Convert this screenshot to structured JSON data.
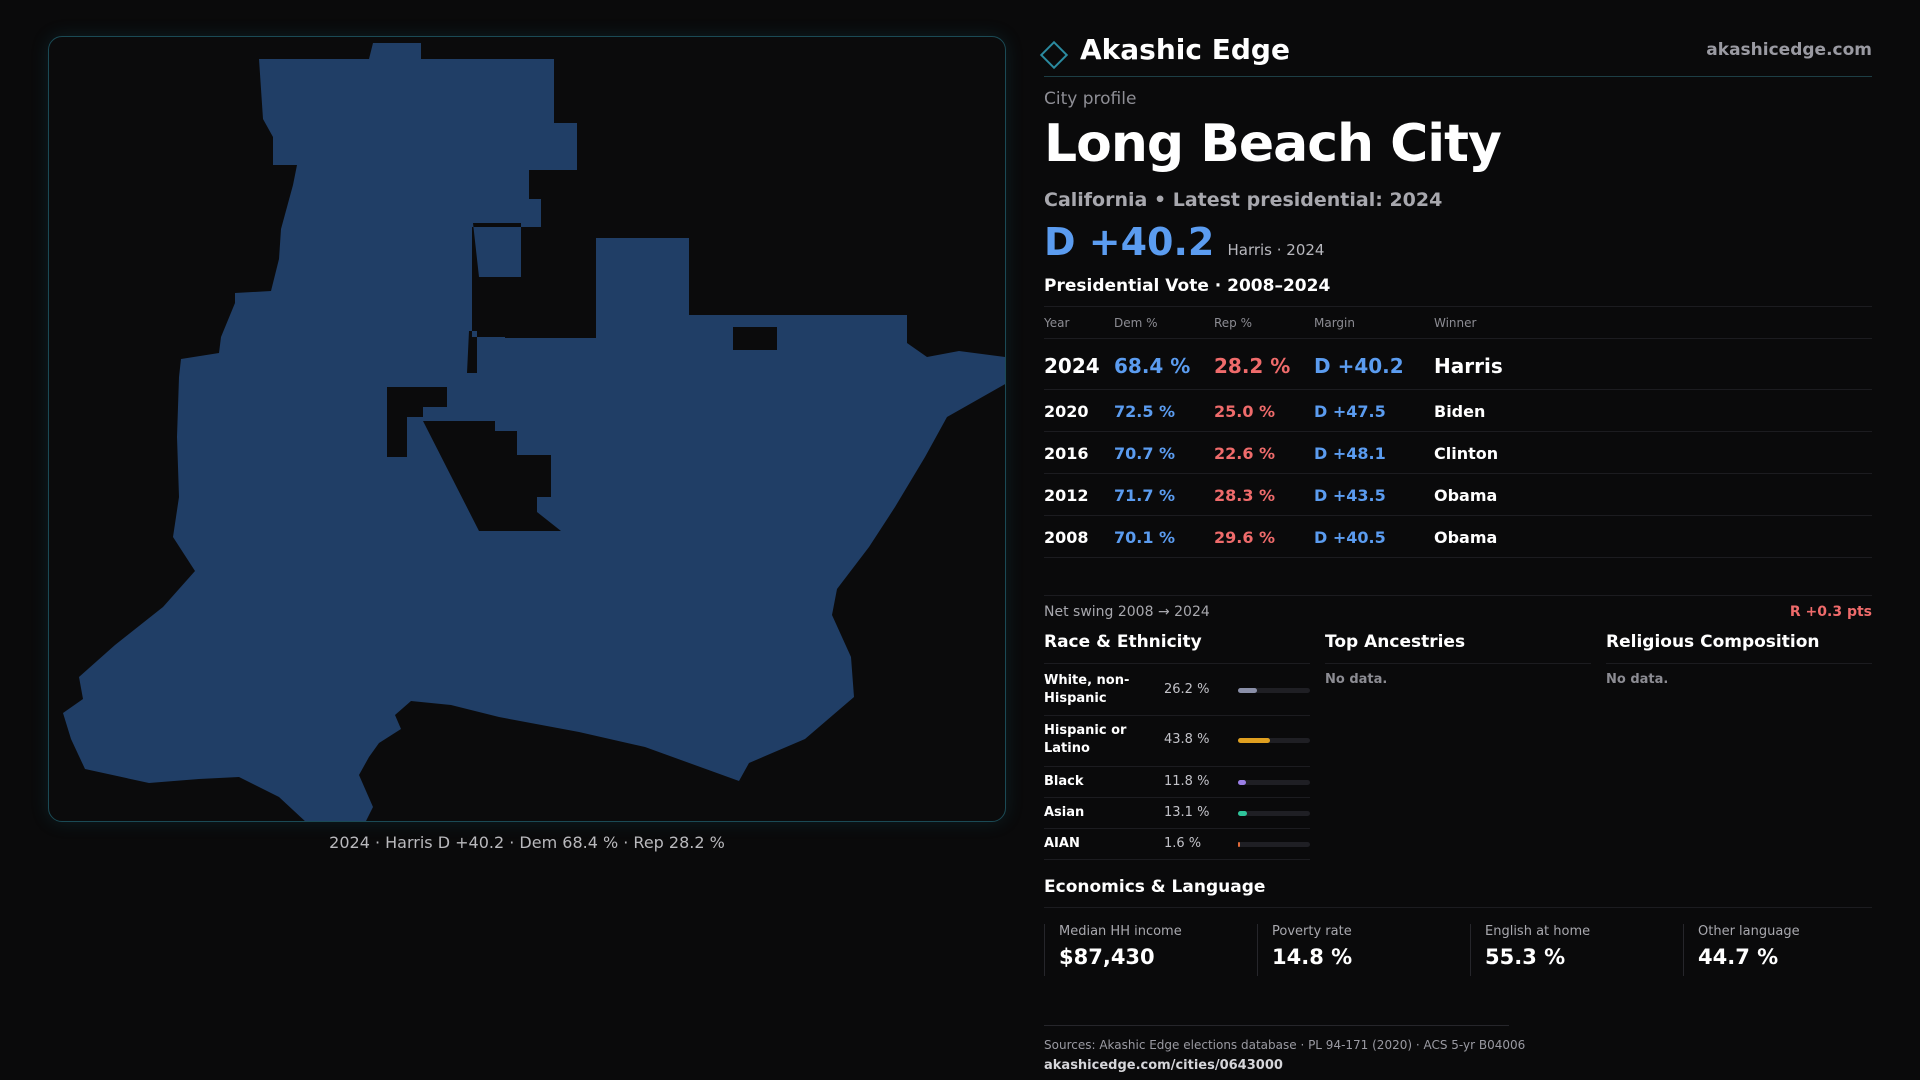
{
  "brand": {
    "name": "Akashic Edge",
    "url": "akashicedge.com"
  },
  "profile": {
    "eyebrow": "City profile",
    "title": "Long Beach City",
    "subtitle": "California • Latest presidential: 2024",
    "headline_margin": "D +40.2",
    "headline_note": "Harris · 2024"
  },
  "map": {
    "fill_color": "#203e66",
    "caption": "2024 · Harris D +40.2 · Dem 68.4 % · Rep 28.2 %"
  },
  "vote": {
    "title": "Presidential Vote · 2008–2024",
    "headers": {
      "year": "Year",
      "dem": "Dem %",
      "rep": "Rep %",
      "margin": "Margin",
      "winner": "Winner"
    },
    "rows": [
      {
        "year": "2024",
        "dem": "68.4 %",
        "rep": "28.2 %",
        "margin": "D +40.2",
        "winner": "Harris"
      },
      {
        "year": "2020",
        "dem": "72.5 %",
        "rep": "25.0 %",
        "margin": "D +47.5",
        "winner": "Biden"
      },
      {
        "year": "2016",
        "dem": "70.7 %",
        "rep": "22.6 %",
        "margin": "D +48.1",
        "winner": "Clinton"
      },
      {
        "year": "2012",
        "dem": "71.7 %",
        "rep": "28.3 %",
        "margin": "D +43.5",
        "winner": "Obama"
      },
      {
        "year": "2008",
        "dem": "70.1 %",
        "rep": "29.6 %",
        "margin": "D +40.5",
        "winner": "Obama"
      }
    ],
    "swing_label": "Net swing 2008 → 2024",
    "swing_value": "R +0.3 pts"
  },
  "colors": {
    "dem": "#5b9cf0",
    "rep": "#ef6b6b",
    "accent": "#2b8aa0"
  },
  "race": {
    "title": "Race & Ethnicity",
    "rows": [
      {
        "label": "White, non-Hispanic",
        "pct": "26.2 %",
        "value": 26.2,
        "color": "#8a8fa8"
      },
      {
        "label": "Hispanic or Latino",
        "pct": "43.8 %",
        "value": 43.8,
        "color": "#e0a020"
      },
      {
        "label": "Black",
        "pct": "11.8 %",
        "value": 11.8,
        "color": "#9b7fe6"
      },
      {
        "label": "Asian",
        "pct": "13.1 %",
        "value": 13.1,
        "color": "#2fc49a"
      },
      {
        "label": "AIAN",
        "pct": "1.6 %",
        "value": 1.6,
        "color": "#e06a3a"
      }
    ]
  },
  "ancestries": {
    "title": "Top Ancestries",
    "empty": "No data."
  },
  "religion": {
    "title": "Religious Composition",
    "empty": "No data."
  },
  "economics": {
    "title": "Economics & Language",
    "items": [
      {
        "label": "Median HH income",
        "value": "$87,430"
      },
      {
        "label": "Poverty rate",
        "value": "14.8 %"
      },
      {
        "label": "English at home",
        "value": "55.3 %"
      },
      {
        "label": "Other language",
        "value": "44.7 %"
      }
    ]
  },
  "footer": {
    "sources": "Sources: Akashic Edge elections database · PL 94-171 (2020) · ACS 5-yr B04006",
    "url": "akashicedge.com/cities/0643000"
  }
}
